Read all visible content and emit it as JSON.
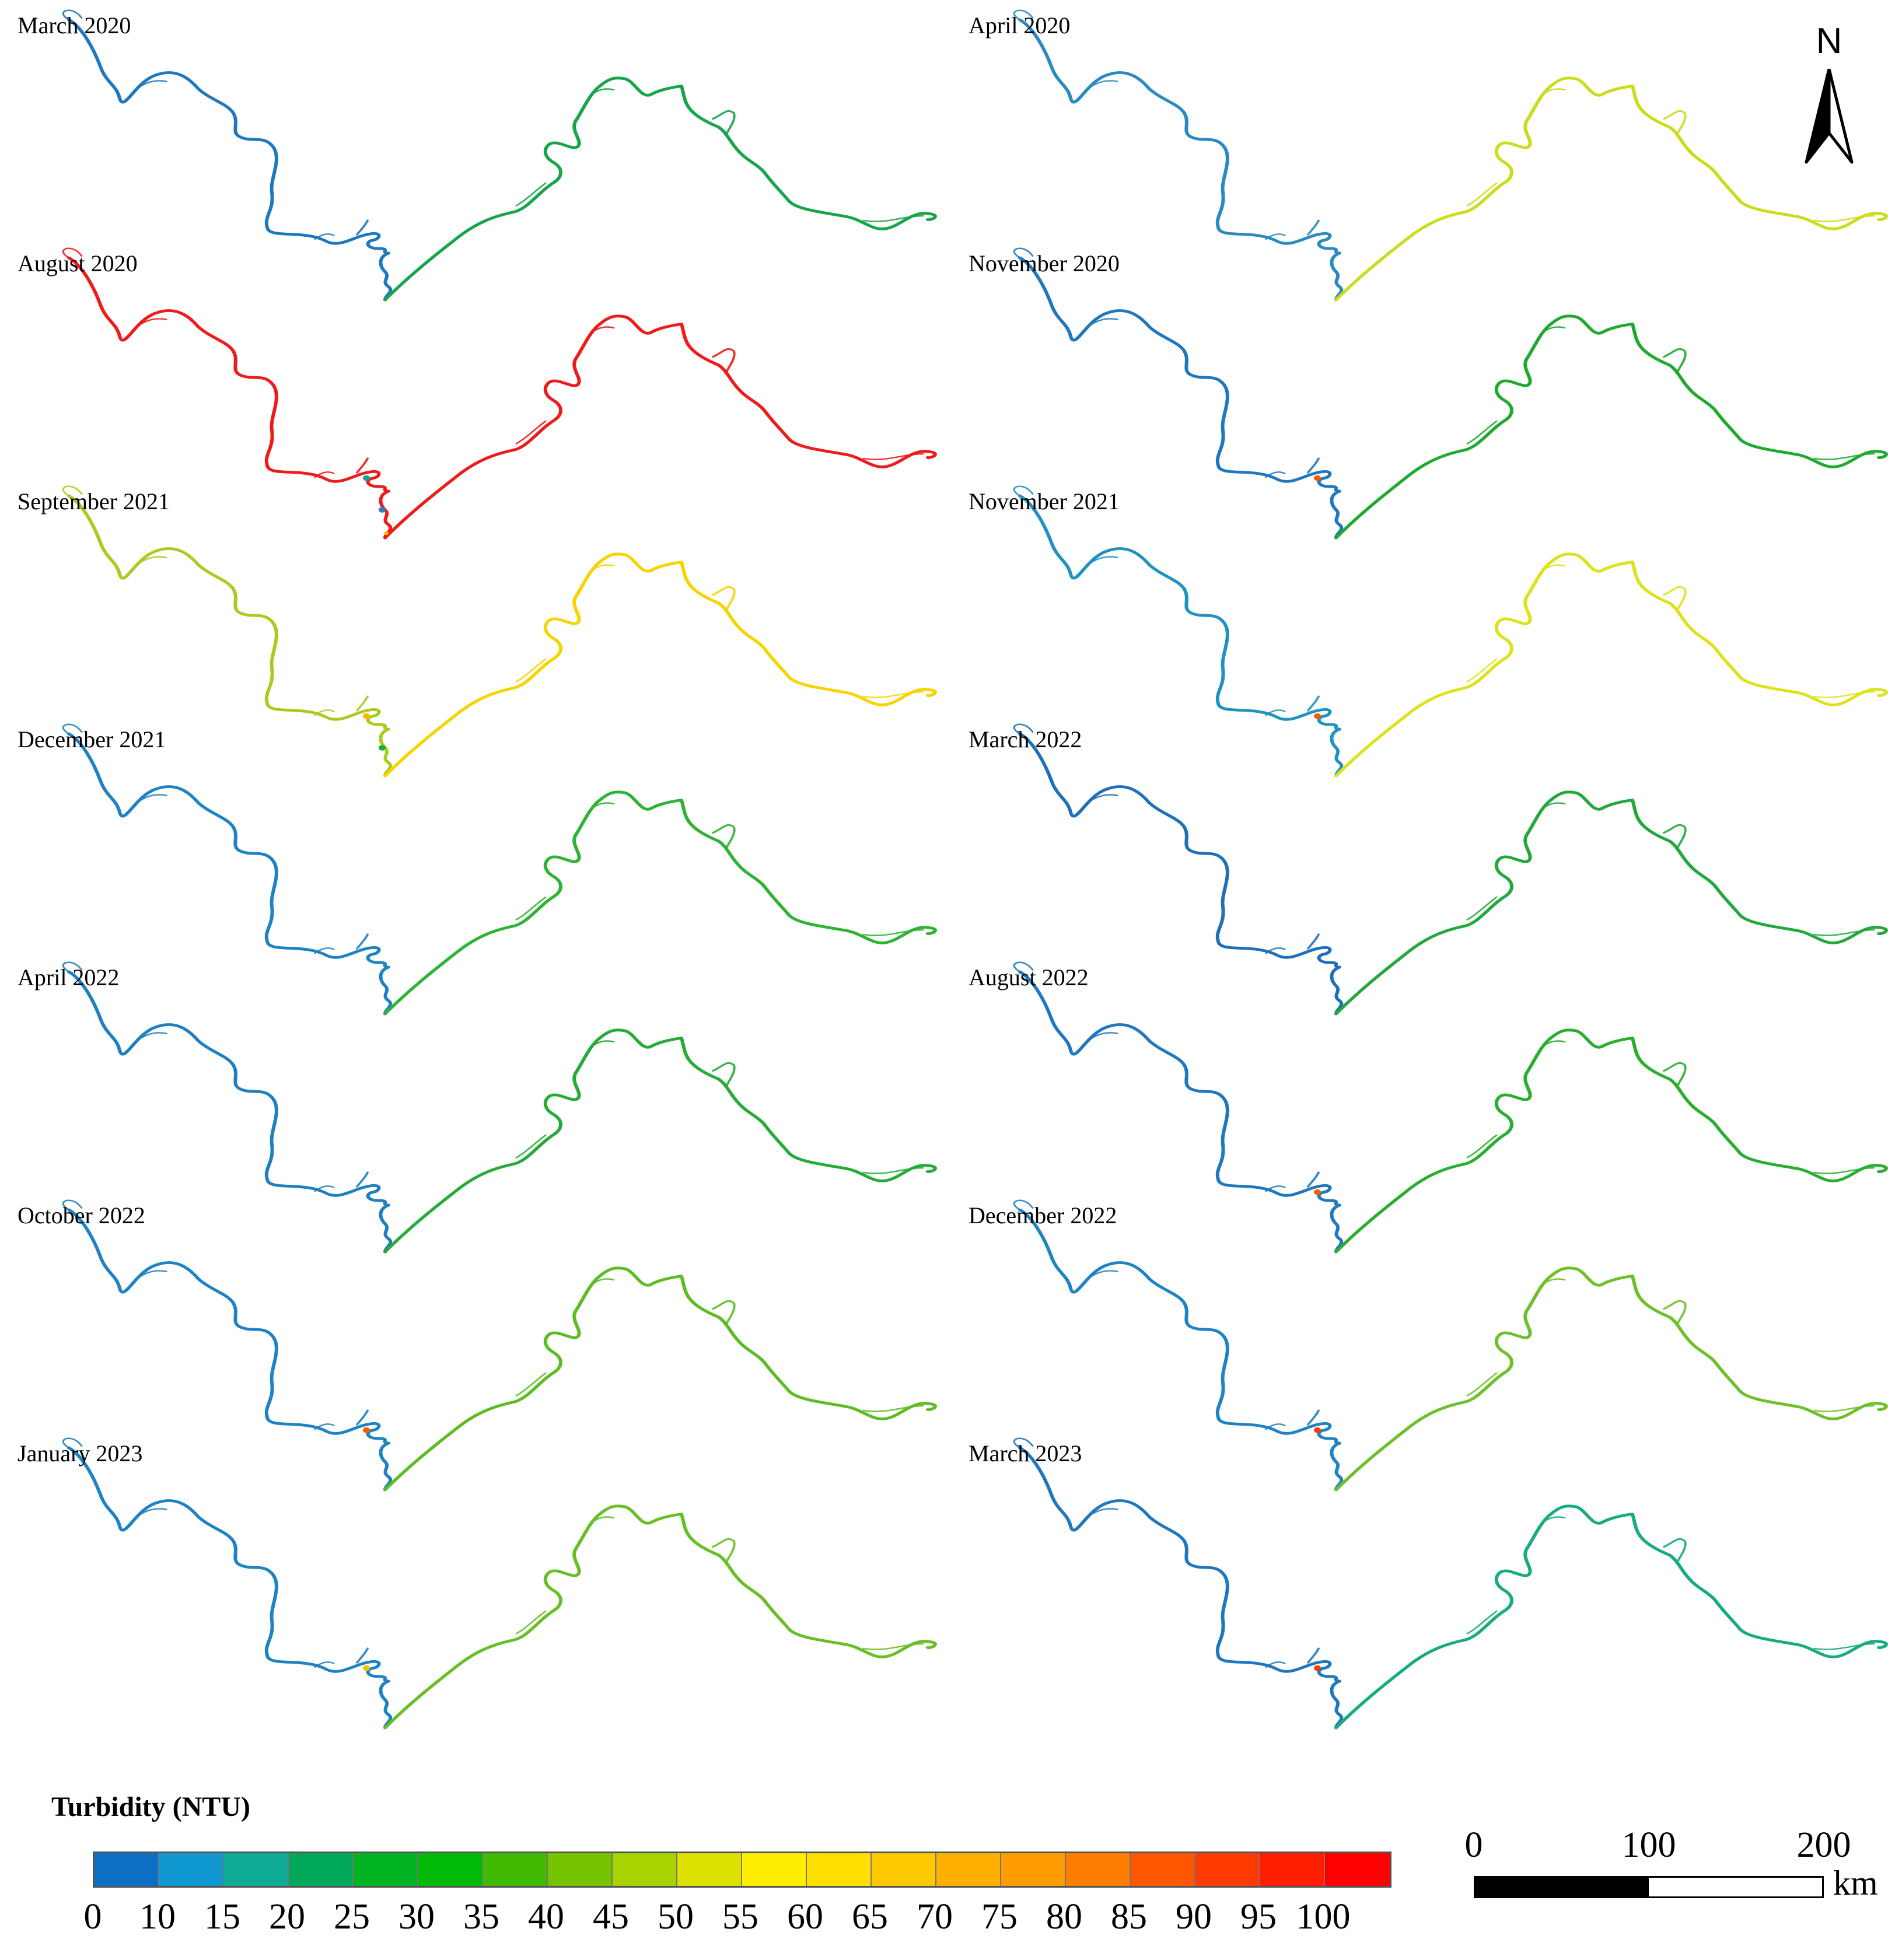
{
  "panels": [
    {
      "label": "March 2020",
      "up": "#1f78bd",
      "down": "#17a54a",
      "accents": []
    },
    {
      "label": "April 2020",
      "up": "#2a89c0",
      "down": "#cbdc1a",
      "accents": []
    },
    {
      "label": "August 2020",
      "up": "#ee1b1b",
      "down": "#ee1b1b",
      "accents": [
        "#12a38a",
        "#2a7fc0",
        "#f2c200"
      ]
    },
    {
      "label": "November 2020",
      "up": "#1f78bd",
      "down": "#1eaa2e",
      "accents": [
        "#ff5a00"
      ]
    },
    {
      "label": "September 2021",
      "up": "#a8cc1e",
      "down": "#f5d400",
      "accents": [
        "#ffb400",
        "#1eaa2e"
      ]
    },
    {
      "label": "November 2021",
      "up": "#1f93bf",
      "down": "#dde31a",
      "accents": [
        "#ff5a00"
      ]
    },
    {
      "label": "December 2021",
      "up": "#1f82c2",
      "down": "#2fb335",
      "accents": []
    },
    {
      "label": "March 2022",
      "up": "#1f6fba",
      "down": "#22a83c",
      "accents": []
    },
    {
      "label": "April 2022",
      "up": "#1f7fbf",
      "down": "#26ab38",
      "accents": []
    },
    {
      "label": "August 2022",
      "up": "#1f78bd",
      "down": "#2aae2f",
      "accents": [
        "#ff5a00"
      ]
    },
    {
      "label": "October 2022",
      "up": "#1f82c2",
      "down": "#5cbc22",
      "accents": [
        "#ff5a00"
      ]
    },
    {
      "label": "December 2022",
      "up": "#1f82c2",
      "down": "#6dc02a",
      "accents": [
        "#ff3a00"
      ]
    },
    {
      "label": "January 2023",
      "up": "#1f82c2",
      "down": "#68bf24",
      "accents": [
        "#f2c200"
      ]
    },
    {
      "label": "March 2023",
      "up": "#1f78bd",
      "down": "#17ab80",
      "accents": [
        "#ff3a00"
      ]
    }
  ],
  "north": {
    "letter": "N"
  },
  "legend": {
    "title": "Turbidity (NTU)",
    "colors": [
      "#0b6fc4",
      "#0f99d0",
      "#0fab96",
      "#00a859",
      "#00b322",
      "#00ba08",
      "#3fba00",
      "#76c400",
      "#a8d200",
      "#dde100",
      "#ffee00",
      "#ffdf00",
      "#ffc900",
      "#ffb000",
      "#ff9d00",
      "#ff7d00",
      "#ff5700",
      "#ff3a00",
      "#ff1e00",
      "#ff0000"
    ],
    "ticks": [
      "0",
      "10",
      "15",
      "20",
      "25",
      "30",
      "35",
      "40",
      "45",
      "50",
      "55",
      "60",
      "65",
      "70",
      "75",
      "80",
      "85",
      "90",
      "95",
      "100"
    ]
  },
  "scale": {
    "ticks": [
      "0",
      "100",
      "200"
    ],
    "unit": "km"
  }
}
